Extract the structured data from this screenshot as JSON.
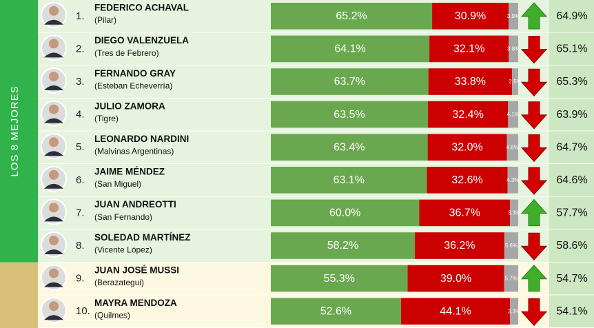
{
  "sidebar": {
    "label": "LOS 8 MEJORES"
  },
  "colors": {
    "positive": "#6aa84f",
    "negative": "#cc0000",
    "other": "#a6a6a6",
    "top_band": "#2fb34a",
    "rest_band": "#d9c07a",
    "top_row": "#e6f4df",
    "rest_row": "#fdf8e2",
    "up": "#3fae29",
    "down": "#d40000"
  },
  "top_count": 8,
  "rows": [
    {
      "rank": "1.",
      "name": "FEDERICO ACHAVAL",
      "place": "(Pilar)",
      "values": [
        65.2,
        30.9,
        3.9
      ],
      "value_labels": [
        "65.2%",
        "30.9%",
        "3.9%"
      ],
      "trend": "up",
      "previous": "64.9%"
    },
    {
      "rank": "2.",
      "name": "DIEGO VALENZUELA",
      "place": "(Tres de Febrero)",
      "values": [
        64.1,
        32.1,
        3.8
      ],
      "value_labels": [
        "64.1%",
        "32.1%",
        "3.8%"
      ],
      "trend": "down",
      "previous": "65.1%"
    },
    {
      "rank": "3.",
      "name": "FERNANDO GRAY",
      "place": "(Esteban Echeverría)",
      "values": [
        63.7,
        33.8,
        2.5
      ],
      "value_labels": [
        "63.7%",
        "33.8%",
        "2.5%"
      ],
      "trend": "down",
      "previous": "65.3%"
    },
    {
      "rank": "4.",
      "name": "JULIO ZAMORA",
      "place": "(Tigre)",
      "values": [
        63.5,
        32.4,
        4.1
      ],
      "value_labels": [
        "63.5%",
        "32.4%",
        "4.1%"
      ],
      "trend": "down",
      "previous": "63.9%"
    },
    {
      "rank": "5.",
      "name": "LEONARDO NARDINI",
      "place": "(Malvinas Argentinas)",
      "values": [
        63.4,
        32.0,
        4.6
      ],
      "value_labels": [
        "63.4%",
        "32.0%",
        "4.6%"
      ],
      "trend": "down",
      "previous": "64.7%"
    },
    {
      "rank": "6.",
      "name": "JAIME MÉNDEZ",
      "place": "(San Miguel)",
      "values": [
        63.1,
        32.6,
        4.3
      ],
      "value_labels": [
        "63.1%",
        "32.6%",
        "4.3%"
      ],
      "trend": "down",
      "previous": "64.6%"
    },
    {
      "rank": "7.",
      "name": "JUAN ANDREOTTI",
      "place": "(San Fernando)",
      "values": [
        60.0,
        36.7,
        3.3
      ],
      "value_labels": [
        "60.0%",
        "36.7%",
        "3.3%"
      ],
      "trend": "up",
      "previous": "57.7%"
    },
    {
      "rank": "8.",
      "name": "SOLEDAD MARTÍNEZ",
      "place": "(Vicente López)",
      "values": [
        58.2,
        36.2,
        5.6
      ],
      "value_labels": [
        "58.2%",
        "36.2%",
        "5.6%"
      ],
      "trend": "down",
      "previous": "58.6%"
    },
    {
      "rank": "9.",
      "name": "JUAN JOSÉ MUSSI",
      "place": "(Berazategui)",
      "values": [
        55.3,
        39.0,
        5.7
      ],
      "value_labels": [
        "55.3%",
        "39.0%",
        "5.7%"
      ],
      "trend": "up",
      "previous": "54.7%"
    },
    {
      "rank": "10.",
      "name": "MAYRA MENDOZA",
      "place": "(Quilmes)",
      "values": [
        52.6,
        44.1,
        3.3
      ],
      "value_labels": [
        "52.6%",
        "44.1%",
        "3.3%"
      ],
      "trend": "down",
      "previous": "54.1%"
    }
  ]
}
